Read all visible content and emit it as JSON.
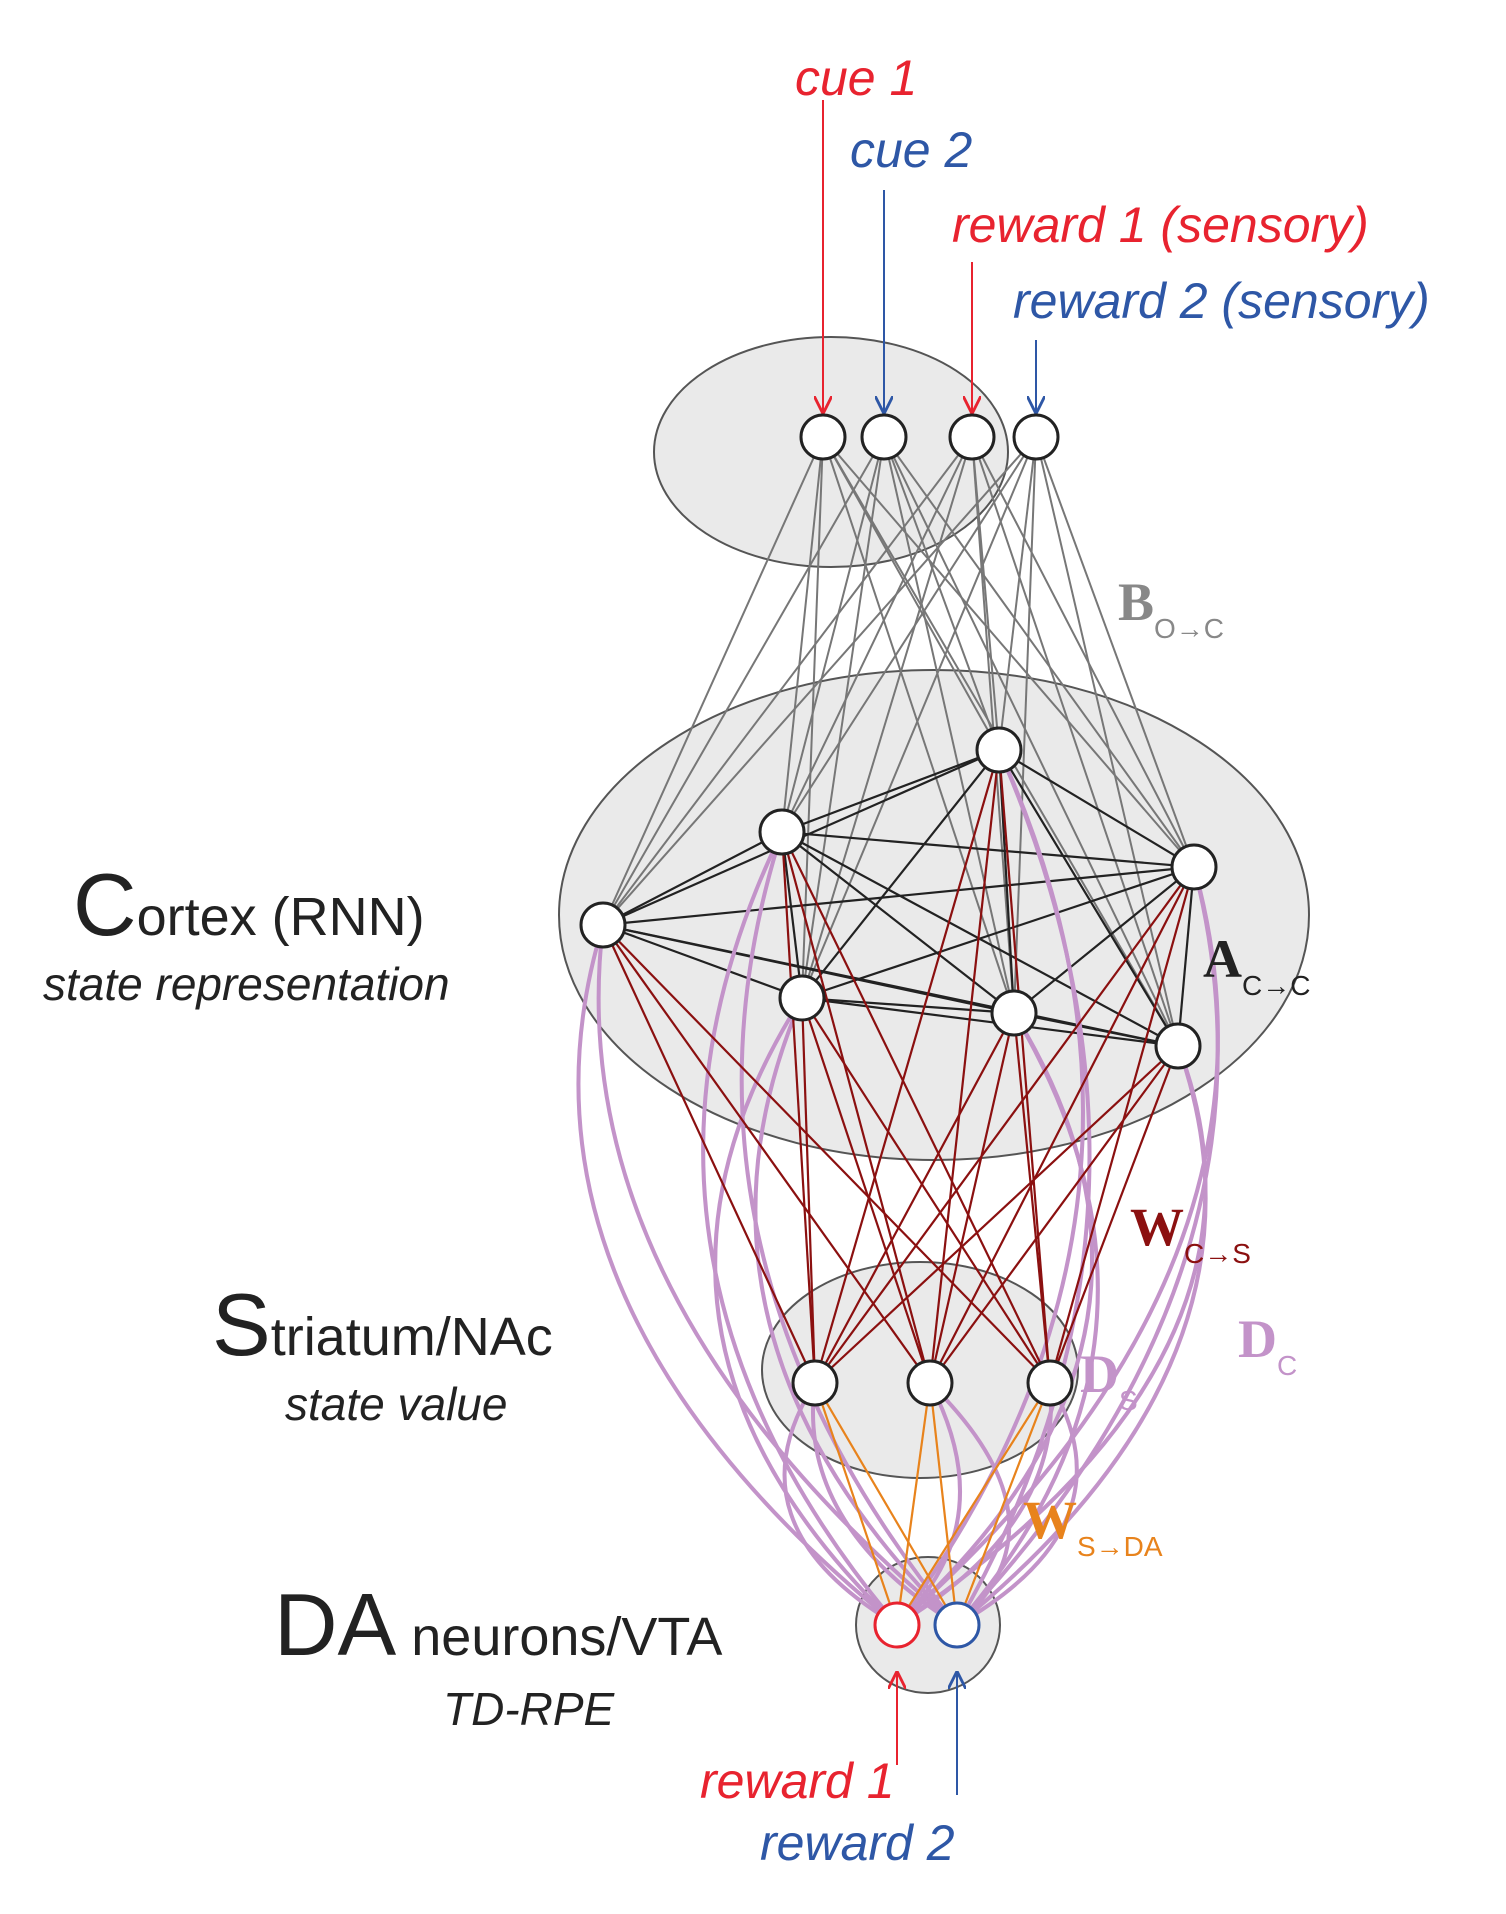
{
  "inputs": {
    "cue1": "cue 1",
    "cue2": "cue 2",
    "reward1_sensory": "reward 1 (sensory)",
    "reward2_sensory": "reward 2 (sensory)"
  },
  "outputs": {
    "reward1": "reward 1",
    "reward2": "reward 2"
  },
  "layers": {
    "cortex": {
      "big_letter": "C",
      "rest": "ortex (RNN)",
      "subtitle": "state representation"
    },
    "striatum": {
      "big_letter": "S",
      "rest": "triatum/NAc",
      "subtitle": "state value"
    },
    "da": {
      "big_letter": "DA",
      "rest": " neurons/VTA",
      "subtitle": "TD-RPE"
    }
  },
  "weights": {
    "B": {
      "letter": "B",
      "sub": "O→C"
    },
    "A": {
      "letter": "A",
      "sub": "C→C"
    },
    "WCS": {
      "letter": "W",
      "sub": "C→S"
    },
    "DC": {
      "letter": "D",
      "sub": "C"
    },
    "DS": {
      "letter": "D",
      "sub": "S"
    },
    "WSDA": {
      "letter": "W",
      "sub": "S→DA"
    }
  },
  "colors": {
    "red": "#e8232f",
    "blue": "#2e57a6",
    "gray_line": "#777777",
    "black_line": "#222222",
    "dark_red": "#8b1010",
    "purple": "#c393c9",
    "orange": "#e8831c",
    "region_fill": "#eaeaea",
    "label_gray": "#888888"
  }
}
